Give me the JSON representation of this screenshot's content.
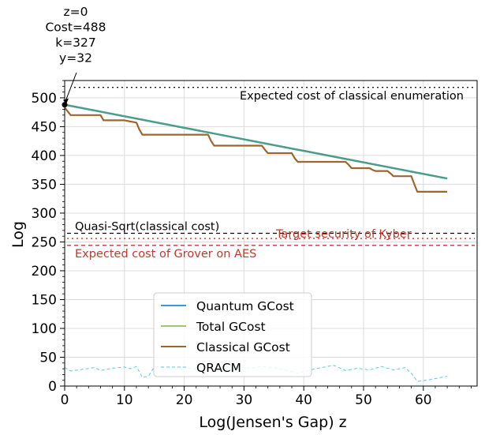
{
  "chart_data": {
    "type": "line",
    "xlabel": "Log(Jensen's Gap) z",
    "ylabel": "Log",
    "xlim": [
      0,
      69
    ],
    "ylim": [
      0,
      530
    ],
    "xticks": [
      0,
      10,
      20,
      30,
      40,
      50,
      60
    ],
    "yticks": [
      0,
      50,
      100,
      150,
      200,
      250,
      300,
      350,
      400,
      450,
      500
    ],
    "grid": true,
    "legend_position": "bottom-center",
    "annotation": {
      "lines": [
        "z=0",
        "Cost=488",
        "k=327",
        "y=32"
      ],
      "point": [
        0,
        488
      ]
    },
    "reference_lines": [
      {
        "label": "Expected cost of classical enumeration",
        "y": 518,
        "style": "dotted",
        "color": "#000000"
      },
      {
        "label": "Quasi-Sqrt(classical cost)",
        "y": 265,
        "style": "dashed",
        "color": "#000000"
      },
      {
        "label": "Target security of Kyber",
        "y": 256,
        "style": "dotted",
        "color": "#c0392b"
      },
      {
        "label": "Expected cost of Grover on AES",
        "y": 244,
        "style": "dashed",
        "color": "#c0392b"
      }
    ],
    "series": [
      {
        "name": "Quantum GCost",
        "color": "#3a9ad9",
        "style": "solid",
        "x": [
          0,
          64
        ],
        "y": [
          488,
          360
        ]
      },
      {
        "name": "Total GCost",
        "color": "#9dc86b",
        "style": "solid",
        "x": [
          0,
          64
        ],
        "y": [
          488,
          360
        ]
      },
      {
        "name": "Classical GCost",
        "color": "#a0642d",
        "style": "solid",
        "x": [
          0,
          1,
          6,
          6.5,
          10,
          12,
          12.5,
          13,
          24,
          24.5,
          25,
          27,
          27.5,
          28,
          33,
          33.5,
          34,
          38,
          38.5,
          39,
          47,
          47.5,
          48,
          51,
          51.5,
          52,
          54,
          54.5,
          55,
          58,
          58.5,
          59,
          64
        ],
        "y": [
          483,
          470,
          470,
          461,
          461,
          457,
          445,
          436,
          436,
          425,
          417,
          417,
          417,
          417,
          417,
          410,
          404,
          404,
          395,
          389,
          389,
          384,
          378,
          378,
          375,
          373,
          373,
          369,
          364,
          364,
          350,
          337,
          337
        ]
      },
      {
        "name": "QRACM",
        "color": "#5cc8e8",
        "style": "dashed",
        "x": [
          0,
          1,
          3,
          5,
          6,
          8,
          10,
          11,
          12,
          13,
          14,
          15,
          17,
          19,
          21,
          22,
          24,
          25,
          27,
          28,
          30,
          31,
          33,
          35,
          38,
          39,
          41,
          43,
          45,
          47,
          49,
          51,
          53,
          55,
          57,
          58,
          59,
          61,
          63,
          64
        ],
        "y": [
          32,
          26,
          29,
          32,
          27,
          31,
          33,
          30,
          34,
          15,
          17,
          33,
          34,
          33,
          31,
          29,
          23,
          26,
          34,
          30,
          33,
          31,
          34,
          32,
          25,
          22,
          28,
          32,
          36,
          27,
          31,
          28,
          34,
          28,
          32,
          22,
          8,
          11,
          15,
          17
        ]
      }
    ]
  }
}
